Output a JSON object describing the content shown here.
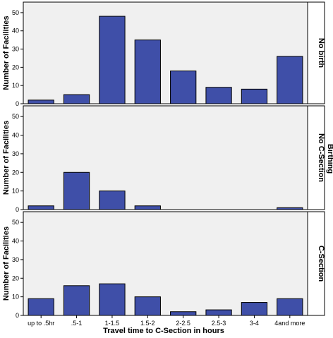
{
  "chart_data": {
    "type": "bar",
    "categories": [
      "up to .5hr",
      ".5-1",
      "1-1.5",
      "1.5-2",
      "2-2.5",
      "2.5-3",
      "3-4",
      "4and more"
    ],
    "ylabel": "Number of Facilities",
    "xlabel": "Travel time to C-Section in hours",
    "ylim": [
      0,
      55
    ],
    "yticks": [
      0,
      10,
      20,
      30,
      40,
      50
    ],
    "grid": false,
    "bar_color": "#3f4fa8",
    "panel_bg": "#f0f0f0",
    "outer_strip_label": "Birthing",
    "panels": [
      {
        "label": "No birth",
        "values": [
          2,
          5,
          48,
          35,
          18,
          9,
          8,
          26
        ]
      },
      {
        "label": "No C-Section",
        "values": [
          2,
          20,
          10,
          2,
          0,
          0,
          0,
          1
        ]
      },
      {
        "label": "C-Section",
        "values": [
          9,
          16,
          17,
          10,
          2,
          3,
          7,
          9
        ]
      }
    ]
  }
}
